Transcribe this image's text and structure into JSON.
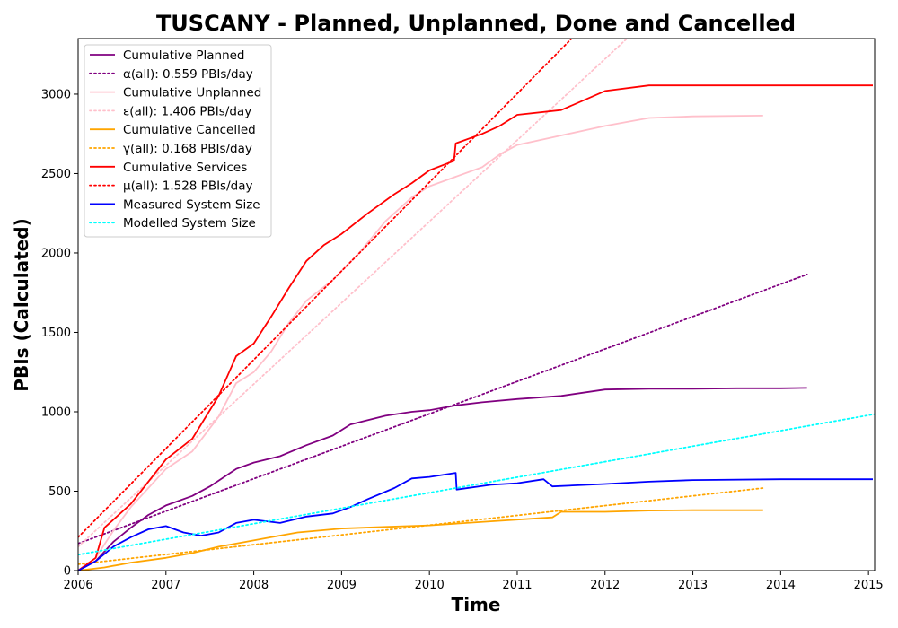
{
  "chart_data": {
    "type": "line",
    "title": "TUSCANY - Planned, Unplanned, Done  and Cancelled",
    "xlabel": "Time",
    "ylabel": "PBIs (Calculated)",
    "xlim": [
      2006.0,
      2015.07
    ],
    "ylim": [
      0,
      3350
    ],
    "xticks": [
      "2006",
      "2007",
      "2008",
      "2009",
      "2010",
      "2011",
      "2012",
      "2013",
      "2014",
      "2015"
    ],
    "yticks": [
      "0",
      "500",
      "1000",
      "1500",
      "2000",
      "2500",
      "3000"
    ],
    "grid": false,
    "legend_position": "top-left",
    "series": [
      {
        "name": "Cumulative Planned",
        "color": "#800080",
        "style": "solid",
        "x": [
          2006.0,
          2006.2,
          2006.4,
          2006.6,
          2006.8,
          2007.0,
          2007.3,
          2007.5,
          2007.8,
          2008.0,
          2008.3,
          2008.6,
          2008.9,
          2009.1,
          2009.5,
          2009.8,
          2010.0,
          2010.3,
          2010.6,
          2011.0,
          2011.5,
          2012.0,
          2012.5,
          2013.0,
          2013.5,
          2014.0,
          2014.3
        ],
        "values": [
          0,
          60,
          180,
          270,
          350,
          410,
          470,
          530,
          640,
          680,
          720,
          790,
          850,
          920,
          975,
          1000,
          1010,
          1040,
          1060,
          1080,
          1100,
          1140,
          1145,
          1145,
          1148,
          1148,
          1150
        ]
      },
      {
        "name": "α(all): 0.559 PBIs/day",
        "color": "#800080",
        "style": "dotted",
        "x": [
          2006.0,
          2014.3
        ],
        "values": [
          170,
          1865
        ]
      },
      {
        "name": "Cumulative Unplanned",
        "color": "#ffc0cb",
        "style": "solid",
        "x": [
          2006.0,
          2006.2,
          2006.4,
          2006.6,
          2006.8,
          2007.0,
          2007.3,
          2007.6,
          2007.8,
          2008.0,
          2008.2,
          2008.4,
          2008.6,
          2008.9,
          2009.2,
          2009.5,
          2009.8,
          2010.0,
          2010.3,
          2010.6,
          2010.8,
          2011.0,
          2011.5,
          2012.0,
          2012.5,
          2013.0,
          2013.8
        ],
        "values": [
          0,
          80,
          250,
          400,
          520,
          640,
          750,
          970,
          1180,
          1250,
          1380,
          1560,
          1700,
          1830,
          2000,
          2200,
          2350,
          2420,
          2480,
          2540,
          2620,
          2680,
          2740,
          2800,
          2850,
          2860,
          2865
        ]
      },
      {
        "name": "ε(all): 1.406 PBIs/day",
        "color": "#ffc0cb",
        "style": "dotted",
        "x": [
          2006.0,
          2012.25
        ],
        "values": [
          150,
          3350
        ]
      },
      {
        "name": "Cumulative Cancelled",
        "color": "#ffa500",
        "style": "solid",
        "x": [
          2006.0,
          2006.3,
          2006.6,
          2007.0,
          2007.3,
          2007.6,
          2007.9,
          2008.2,
          2008.5,
          2009.0,
          2009.5,
          2010.0,
          2010.7,
          2011.4,
          2011.5,
          2012.0,
          2012.5,
          2013.0,
          2013.8
        ],
        "values": [
          0,
          20,
          50,
          80,
          110,
          150,
          180,
          210,
          240,
          265,
          275,
          285,
          310,
          335,
          370,
          370,
          378,
          380,
          380
        ]
      },
      {
        "name": "γ(all): 0.168 PBIs/day",
        "color": "#ffa500",
        "style": "dotted",
        "x": [
          2006.0,
          2013.8
        ],
        "values": [
          40,
          520
        ]
      },
      {
        "name": "Cumulative Services",
        "color": "#ff0000",
        "style": "solid",
        "x": [
          2006.0,
          2006.2,
          2006.3,
          2006.6,
          2006.8,
          2007.0,
          2007.3,
          2007.6,
          2007.8,
          2008.0,
          2008.2,
          2008.4,
          2008.6,
          2008.8,
          2009.0,
          2009.3,
          2009.6,
          2009.8,
          2010.0,
          2010.28,
          2010.3,
          2010.6,
          2010.8,
          2011.0,
          2011.5,
          2012.0,
          2012.5,
          2013.0,
          2014.0,
          2015.05
        ],
        "values": [
          0,
          80,
          270,
          420,
          560,
          700,
          830,
          1100,
          1350,
          1430,
          1600,
          1780,
          1950,
          2050,
          2120,
          2250,
          2370,
          2440,
          2520,
          2580,
          2690,
          2750,
          2800,
          2870,
          2900,
          3020,
          3055,
          3055,
          3055,
          3055
        ]
      },
      {
        "name": "μ(all): 1.528 PBIs/day",
        "color": "#ff0000",
        "style": "dotted",
        "x": [
          2006.0,
          2011.62
        ],
        "values": [
          210,
          3350
        ]
      },
      {
        "name": "Measured System Size",
        "color": "#0000ff",
        "style": "solid",
        "x": [
          2006.0,
          2006.2,
          2006.4,
          2006.6,
          2006.8,
          2007.0,
          2007.2,
          2007.4,
          2007.6,
          2007.8,
          2008.0,
          2008.3,
          2008.6,
          2008.9,
          2009.1,
          2009.3,
          2009.6,
          2009.8,
          2010.0,
          2010.3,
          2010.31,
          2010.7,
          2011.0,
          2011.3,
          2011.4,
          2011.8,
          2012.0,
          2012.5,
          2013.0,
          2014.0,
          2015.05
        ],
        "values": [
          0,
          60,
          150,
          210,
          260,
          280,
          240,
          220,
          240,
          300,
          320,
          300,
          340,
          360,
          400,
          450,
          520,
          580,
          590,
          615,
          510,
          540,
          550,
          575,
          530,
          540,
          545,
          560,
          570,
          575,
          575
        ]
      },
      {
        "name": "Modelled System Size",
        "color": "#00ffff",
        "style": "dotted",
        "x": [
          2006.0,
          2015.07
        ],
        "values": [
          100,
          985
        ]
      }
    ]
  }
}
